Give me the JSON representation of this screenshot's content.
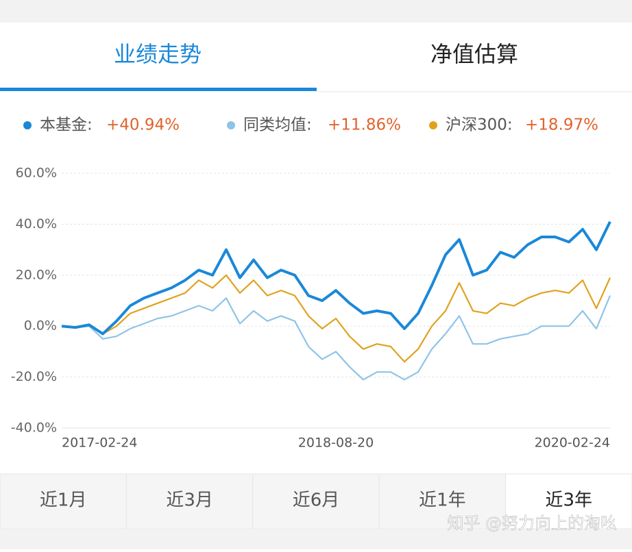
{
  "tabs": [
    "业绩走势",
    "净值估算"
  ],
  "chart_data": {
    "type": "line",
    "categories": [
      "2017-02-24",
      null,
      null,
      null,
      null,
      null,
      null,
      null,
      null,
      null,
      null,
      null,
      null,
      null,
      null,
      null,
      null,
      null,
      null,
      null,
      "2018-08-20",
      null,
      null,
      null,
      null,
      null,
      null,
      null,
      null,
      null,
      null,
      null,
      null,
      null,
      null,
      null,
      null,
      null,
      null,
      null,
      "2020-02-24"
    ],
    "series": [
      {
        "name": "本基金:",
        "color": "#1a88d8",
        "total_return": {
          "value": 40.94,
          "label": "+40.94%"
        },
        "values": [
          0,
          -0.5,
          0.5,
          -3,
          2,
          8,
          11,
          13,
          15,
          18,
          22,
          20,
          30,
          19,
          26,
          19,
          22,
          20,
          12,
          10,
          14,
          9,
          5,
          6,
          5,
          -1,
          5,
          16,
          28,
          34,
          20,
          22,
          29,
          27,
          32,
          35,
          35,
          33,
          38,
          30,
          41
        ]
      },
      {
        "name": "同类均值:",
        "color": "#8ec4e8",
        "total_return": {
          "value": 11.86,
          "label": "+11.86%"
        },
        "values": [
          0,
          -0.5,
          0,
          -5,
          -4,
          -1,
          1,
          3,
          4,
          6,
          8,
          6,
          11,
          1,
          6,
          2,
          4,
          2,
          -8,
          -13,
          -10,
          -16,
          -21,
          -18,
          -18,
          -21,
          -18,
          -9,
          -3,
          4,
          -7,
          -7,
          -5,
          -4,
          -3,
          0,
          0,
          0,
          6,
          -1,
          12
        ]
      },
      {
        "name": "沪深300:",
        "color": "#e0a21e",
        "total_return": {
          "value": 18.97,
          "label": "+18.97%"
        },
        "values": [
          0,
          -0.5,
          0,
          -3,
          0,
          5,
          7,
          9,
          11,
          13,
          18,
          15,
          20,
          13,
          18,
          12,
          14,
          12,
          4,
          -1,
          3,
          -4,
          -9,
          -7,
          -8,
          -14,
          -9,
          0,
          6,
          17,
          6,
          5,
          9,
          8,
          11,
          13,
          14,
          13,
          18,
          7,
          19
        ]
      }
    ],
    "ylim": [
      -40,
      60
    ],
    "yticks": [
      {
        "value": -40,
        "label": "-40.0%"
      },
      {
        "value": -20,
        "label": "-20.0%"
      },
      {
        "value": 0,
        "label": "0.0%"
      },
      {
        "value": 20,
        "label": "20.0%"
      },
      {
        "value": 40,
        "label": "40.0%"
      },
      {
        "value": 60,
        "label": "60.0%"
      }
    ],
    "grid": true,
    "return_color": "#e2622c"
  },
  "periods": [
    "近1月",
    "近3月",
    "近6月",
    "近1年",
    "近3年"
  ],
  "watermark": "知乎 @努力向上的淘吆"
}
